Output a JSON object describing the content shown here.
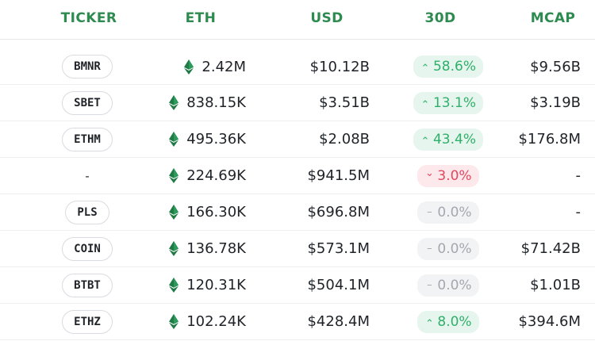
{
  "columns": [
    "TICKER",
    "ETH",
    "USD",
    "30D",
    "MCAP"
  ],
  "colors": {
    "header": "#2e8b4f",
    "up": "#2fb06a",
    "down": "#e3475f",
    "flat": "#a3a8ae",
    "eth_icon": "#1f7a45"
  },
  "rows": [
    {
      "ticker": "BMNR",
      "ticker_pill": true,
      "eth": "2.42M",
      "usd": "$10.12B",
      "change": "58.6%",
      "direction": "up",
      "mcap": "$9.56B"
    },
    {
      "ticker": "SBET",
      "ticker_pill": true,
      "eth": "838.15K",
      "usd": "$3.51B",
      "change": "13.1%",
      "direction": "up",
      "mcap": "$3.19B"
    },
    {
      "ticker": "ETHM",
      "ticker_pill": true,
      "eth": "495.36K",
      "usd": "$2.08B",
      "change": "43.4%",
      "direction": "up",
      "mcap": "$176.8M"
    },
    {
      "ticker": "-",
      "ticker_pill": false,
      "eth": "224.69K",
      "usd": "$941.5M",
      "change": "3.0%",
      "direction": "down",
      "mcap": "-"
    },
    {
      "ticker": "PLS",
      "ticker_pill": true,
      "eth": "166.30K",
      "usd": "$696.8M",
      "change": "0.0%",
      "direction": "flat",
      "mcap": "-"
    },
    {
      "ticker": "COIN",
      "ticker_pill": true,
      "eth": "136.78K",
      "usd": "$573.1M",
      "change": "0.0%",
      "direction": "flat",
      "mcap": "$71.42B"
    },
    {
      "ticker": "BTBT",
      "ticker_pill": true,
      "eth": "120.31K",
      "usd": "$504.1M",
      "change": "0.0%",
      "direction": "flat",
      "mcap": "$1.01B"
    },
    {
      "ticker": "ETHZ",
      "ticker_pill": true,
      "eth": "102.24K",
      "usd": "$428.4M",
      "change": "8.0%",
      "direction": "up",
      "mcap": "$394.6M"
    }
  ]
}
